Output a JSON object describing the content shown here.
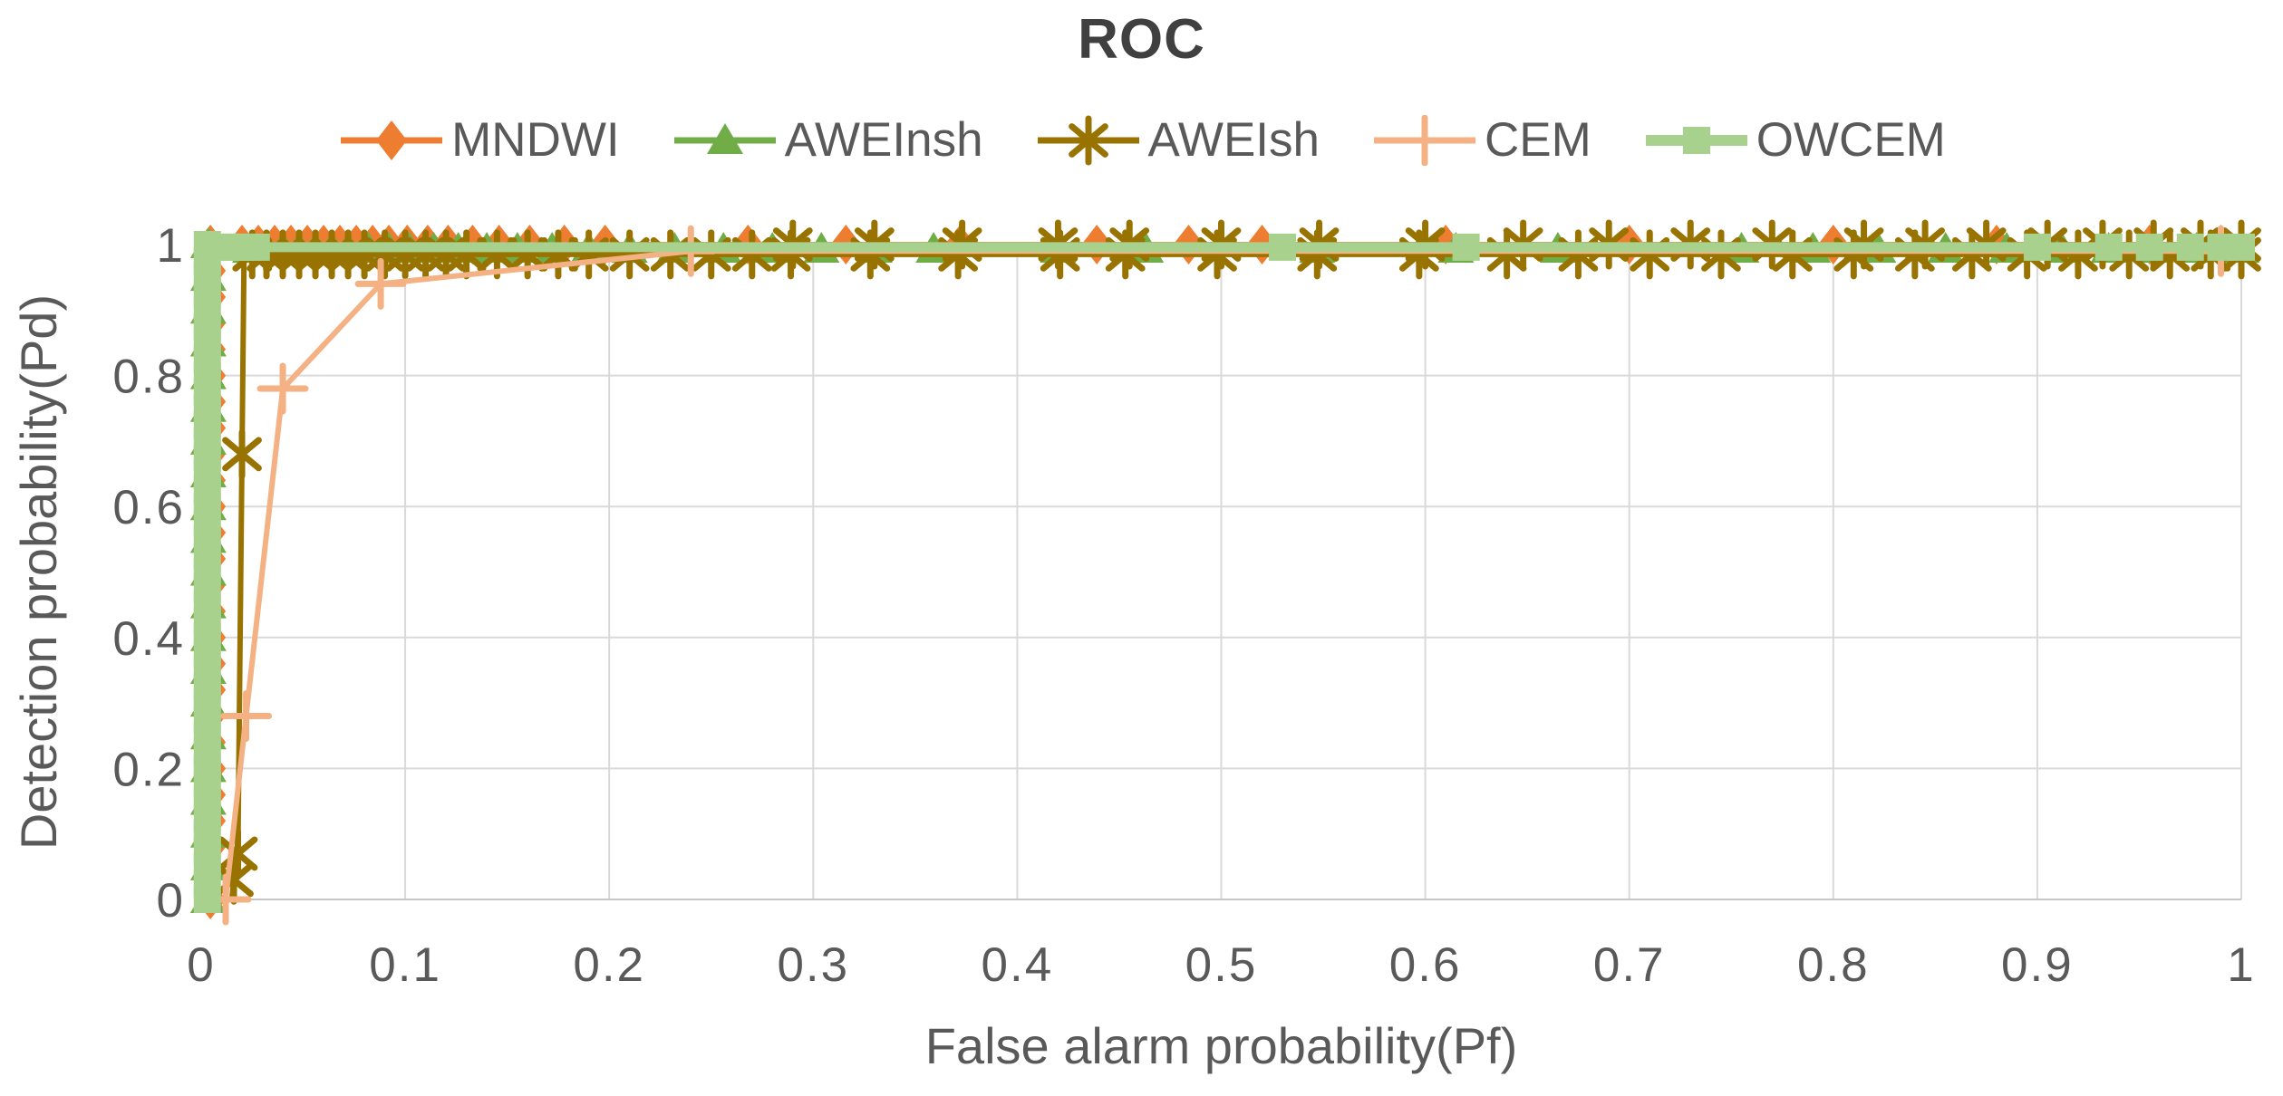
{
  "chart_data": {
    "type": "line",
    "title": "ROC",
    "xlabel": "False alarm probability(Pf)",
    "ylabel": "Detection probability(Pd)",
    "xlim": [
      0,
      1
    ],
    "ylim": [
      0,
      1
    ],
    "grid": true,
    "legend_position": "top",
    "style": {
      "grid_color": "#D9D9D9",
      "axis_color": "#C6C6C6",
      "text_color": "#595959",
      "title_color": "#404040",
      "background": "#FFFFFF"
    },
    "x_ticks": [
      {
        "v": 0,
        "label": "0"
      },
      {
        "v": 0.1,
        "label": "0.1"
      },
      {
        "v": 0.2,
        "label": "0.2"
      },
      {
        "v": 0.3,
        "label": "0.3"
      },
      {
        "v": 0.4,
        "label": "0.4"
      },
      {
        "v": 0.5,
        "label": "0.5"
      },
      {
        "v": 0.6,
        "label": "0.6"
      },
      {
        "v": 0.7,
        "label": "0.7"
      },
      {
        "v": 0.8,
        "label": "0.8"
      },
      {
        "v": 0.9,
        "label": "0.9"
      },
      {
        "v": 1,
        "label": "1"
      }
    ],
    "y_ticks": [
      {
        "v": 0,
        "label": "0"
      },
      {
        "v": 0.2,
        "label": "0.2"
      },
      {
        "v": 0.4,
        "label": "0.4"
      },
      {
        "v": 0.6,
        "label": "0.6"
      },
      {
        "v": 0.8,
        "label": "0.8"
      },
      {
        "v": 1,
        "label": "1"
      }
    ],
    "series": [
      {
        "name": "MNDWI",
        "color": "#ED7D31",
        "marker": "diamond",
        "line_width": 6,
        "points": [
          [
            0.0045,
            0
          ],
          [
            0.0045,
            1
          ],
          [
            1,
            1
          ]
        ],
        "marker_runs": [
          {
            "x": 0.0045,
            "y0": 0,
            "y1": 1,
            "count": 26
          }
        ],
        "marker_rows": [
          {
            "y": 1.0,
            "xs": [
              0.02,
              0.028,
              0.036,
              0.044,
              0.052,
              0.06,
              0.068,
              0.076,
              0.084,
              0.092,
              0.101,
              0.111,
              0.121,
              0.133,
              0.146,
              0.161,
              0.178,
              0.198,
              0.268,
              0.316,
              0.372,
              0.439,
              0.484,
              0.52,
              0.61,
              0.7,
              0.8,
              0.88,
              0.955,
              0.99
            ]
          }
        ],
        "marker_points": []
      },
      {
        "name": "AWEInsh",
        "color": "#70AD47",
        "marker": "triangle",
        "line_width": 6,
        "points": [
          [
            0.0035,
            0
          ],
          [
            0.0035,
            0.993
          ],
          [
            1,
            0.993
          ]
        ],
        "marker_runs": [
          {
            "x": 0.0035,
            "y0": 0,
            "y1": 1,
            "count": 21
          }
        ],
        "marker_rows": [
          {
            "y": 0.993,
            "xs": [
              0.024,
              0.032,
              0.04,
              0.048,
              0.056,
              0.064,
              0.072,
              0.082,
              0.092,
              0.102,
              0.114,
              0.126,
              0.14,
              0.155,
              0.172,
              0.19,
              0.21,
              0.232,
              0.256,
              0.28,
              0.304,
              0.33,
              0.359,
              0.42,
              0.463,
              0.547,
              0.615,
              0.665,
              0.755,
              0.79,
              0.822,
              0.855,
              0.885,
              0.912,
              0.935,
              0.958,
              0.978,
              1.0
            ]
          }
        ],
        "marker_points": []
      },
      {
        "name": "AWEIsh",
        "color": "#997300",
        "marker": "star",
        "line_width": 6,
        "points": [
          [
            0.015,
            0
          ],
          [
            0.016,
            0.03
          ],
          [
            0.018,
            0.07
          ],
          [
            0.02,
            0.68
          ],
          [
            0.021,
            0.985
          ],
          [
            1,
            0.985
          ]
        ],
        "marker_runs": [],
        "marker_rows": [
          {
            "y": 0.985,
            "xs": [
              0.025,
              0.032,
              0.04,
              0.048,
              0.056,
              0.064,
              0.072,
              0.08,
              0.09,
              0.1,
              0.11,
              0.12,
              0.13,
              0.145,
              0.16,
              0.175,
              0.19,
              0.21,
              0.23,
              0.25,
              0.27,
              0.289,
              0.328,
              0.371,
              0.421,
              0.453,
              0.498,
              0.547,
              0.597,
              0.64,
              0.675,
              0.71,
              0.745,
              0.78,
              0.81,
              0.84,
              0.868,
              0.895,
              0.92,
              0.945,
              0.965,
              0.985,
              1.0
            ]
          },
          {
            "y": 1.0,
            "xs": [
              0.29,
              0.33,
              0.373,
              0.42,
              0.455,
              0.5,
              0.548,
              0.6,
              0.648,
              0.69,
              0.73,
              0.77,
              0.815,
              0.845,
              0.875,
              0.905,
              0.932,
              0.957,
              0.98,
              1.0
            ]
          }
        ],
        "marker_points": [
          [
            0.016,
            0.03
          ],
          [
            0.018,
            0.07
          ],
          [
            0.02,
            0.68
          ]
        ]
      },
      {
        "name": "CEM",
        "color": "#F4B183",
        "marker": "plus",
        "line_width": 6,
        "points": [
          [
            0.012,
            0
          ],
          [
            0.022,
            0.28
          ],
          [
            0.04,
            0.78
          ],
          [
            0.088,
            0.94
          ],
          [
            0.24,
            0.99
          ],
          [
            1,
            0.99
          ]
        ],
        "marker_runs": [],
        "marker_rows": [],
        "marker_points": [
          [
            0.012,
            0
          ],
          [
            0.022,
            0.28
          ],
          [
            0.04,
            0.78
          ],
          [
            0.088,
            0.94
          ],
          [
            0.24,
            0.99
          ],
          [
            0.99,
            0.99
          ]
        ]
      },
      {
        "name": "OWCEM",
        "color": "#A9D18E",
        "marker": "square",
        "line_width": 11,
        "points": [
          [
            0.003,
            0
          ],
          [
            0.003,
            0.998
          ],
          [
            0.01,
            0.996
          ],
          [
            1,
            0.996
          ]
        ],
        "marker_runs": [
          {
            "x": 0.003,
            "y0": 0,
            "y1": 1,
            "count": 41
          }
        ],
        "marker_rows": [
          {
            "y": 0.996,
            "xs": [
              0.012,
              0.017,
              0.022,
              0.027,
              0.53,
              0.62,
              0.9,
              0.935,
              0.955,
              0.975,
              0.99,
              1.0
            ]
          }
        ],
        "marker_points": []
      }
    ]
  }
}
